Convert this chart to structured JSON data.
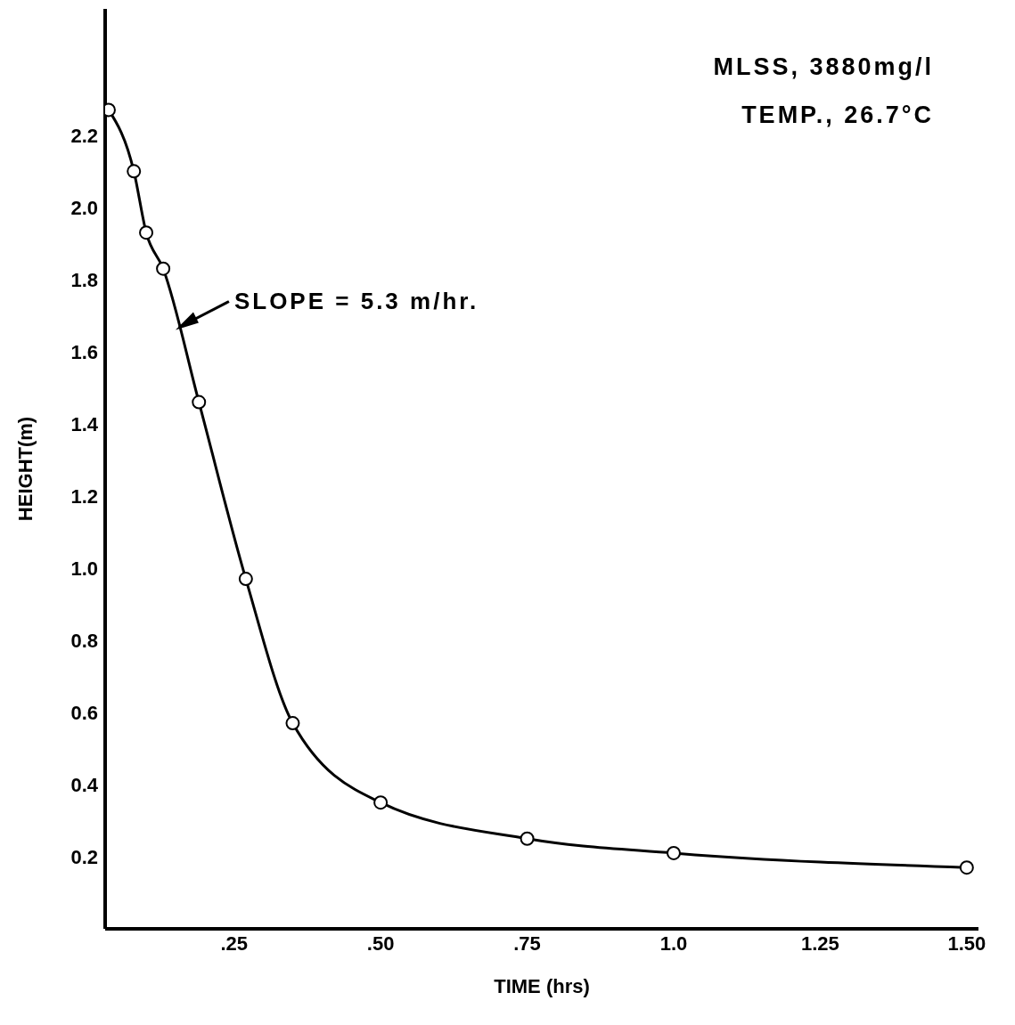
{
  "chart_data": {
    "type": "line",
    "xlabel": "TIME (hrs)",
    "ylabel": "HEIGHT(m)",
    "x": [
      0.036,
      0.079,
      0.1,
      0.129,
      0.19,
      0.27,
      0.35,
      0.5,
      0.75,
      1.0,
      1.5
    ],
    "series": [
      {
        "color": "#000000",
        "values": [
          2.27,
          2.1,
          1.93,
          1.83,
          1.46,
          0.97,
          0.57,
          0.35,
          0.25,
          0.21,
          0.17
        ]
      }
    ],
    "xlim": [
      0.03,
      1.52
    ],
    "ylim": [
      0,
      2.55
    ],
    "xticks": [
      {
        "value": 0.25,
        "label": ".25"
      },
      {
        "value": 0.5,
        "label": ".50"
      },
      {
        "value": 0.75,
        "label": ".75"
      },
      {
        "value": 1,
        "label": "1.0"
      },
      1.25,
      {
        "value": 1.5,
        "label": "1.50"
      }
    ],
    "yticks": [
      0.2,
      0.4,
      0.6,
      0.8,
      {
        "value": 1,
        "label": "1.0"
      },
      1.2,
      1.4,
      1.6,
      1.8,
      {
        "value": 2,
        "label": "2.0"
      },
      2.2
    ],
    "marker": "circle",
    "line_style": "solid",
    "grid": false,
    "legend": false,
    "annotations": [
      "MLSS, 3880mg/l",
      "TEMP., 26.7°C",
      {
        "text": "SLOPE = 5.3 m/hr.",
        "x": 0.15,
        "y": 1.66
      }
    ]
  }
}
